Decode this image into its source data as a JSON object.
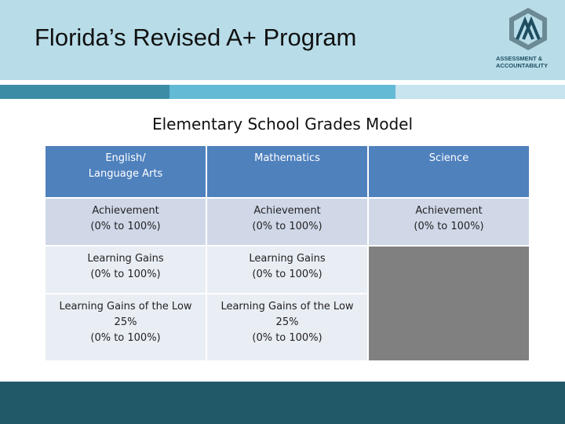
{
  "header": {
    "title": "Florida’s Revised A+ Program",
    "logo": [
      "ASSESSMENT &",
      "ACCOUNTABILITY"
    ]
  },
  "subtitle": "Elementary School Grades Model",
  "table": {
    "header": [
      [
        "English/",
        "Language Arts"
      ],
      [
        "Mathematics"
      ],
      [
        "Science"
      ]
    ],
    "rows": [
      [
        [
          "Achievement",
          "(0% to 100%)"
        ],
        [
          "Achievement",
          "(0% to 100%)"
        ],
        [
          "Achievement",
          "(0% to 100%)"
        ]
      ],
      [
        [
          "Learning Gains",
          "(0% to 100%)"
        ],
        [
          "Learning Gains",
          "(0% to 100%)"
        ]
      ],
      [
        [
          "Learning Gains of the Low",
          "25%",
          "(0% to 100%)"
        ],
        [
          "Learning Gains of the Low",
          "25%",
          "(0% to 100%)"
        ]
      ]
    ]
  }
}
